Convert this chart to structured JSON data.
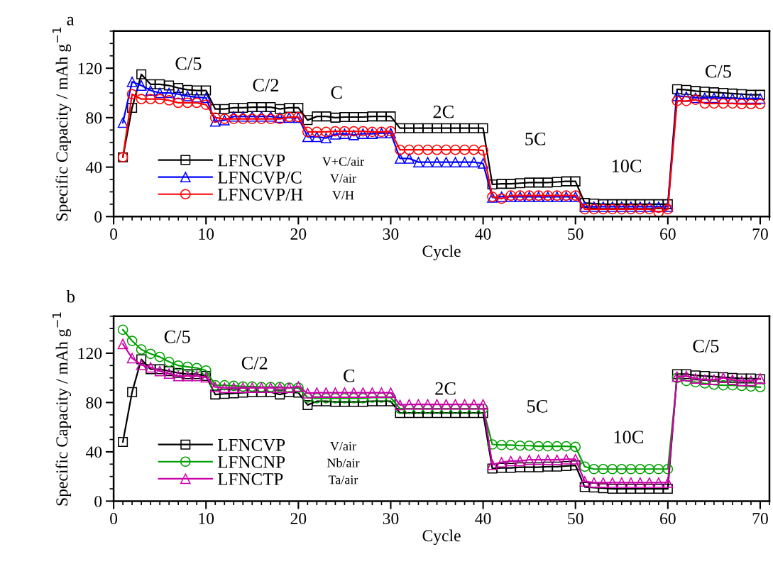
{
  "chart_data": [
    {
      "type": "line",
      "title": "a",
      "xlabel": "Cycle",
      "ylabel": "Specific Capacity / mAh g$^{−1}$",
      "x": [
        1,
        2,
        3,
        4,
        5,
        6,
        7,
        8,
        9,
        10,
        11,
        12,
        13,
        14,
        15,
        16,
        17,
        18,
        19,
        20,
        21,
        22,
        23,
        24,
        25,
        26,
        27,
        28,
        29,
        30,
        31,
        32,
        33,
        34,
        35,
        36,
        37,
        38,
        39,
        40,
        41,
        42,
        43,
        44,
        45,
        46,
        47,
        48,
        49,
        50,
        51,
        52,
        53,
        54,
        55,
        56,
        57,
        58,
        59,
        60,
        61,
        62,
        63,
        64,
        65,
        66,
        67,
        68,
        69,
        70
      ],
      "xlim": [
        0,
        71
      ],
      "xticks": [
        0,
        10,
        20,
        30,
        40,
        50,
        60,
        70
      ],
      "ylim": [
        0,
        150
      ],
      "yticks": [
        0,
        40,
        80,
        120
      ],
      "legend": "lower left",
      "line_style": "solid",
      "grid": false,
      "series": [
        {
          "name": "LFNCVP",
          "color": "#000000",
          "marker": "square",
          "values": [
            48,
            88,
            115,
            107,
            107,
            106,
            104,
            102.5,
            102,
            102,
            87,
            87,
            88,
            88,
            88.5,
            88.5,
            88.5,
            87,
            88,
            88,
            78,
            81,
            81,
            80,
            80.5,
            80.5,
            80.5,
            81,
            81,
            81,
            71.5,
            71.5,
            71.5,
            71.5,
            71.5,
            71.5,
            71.5,
            71.5,
            71.5,
            71.5,
            26,
            26.5,
            26.5,
            27,
            27.5,
            27.5,
            27.5,
            28,
            28.5,
            28.5,
            11,
            10.5,
            10,
            10,
            10,
            10,
            10,
            10,
            10,
            10,
            103,
            102.5,
            101.5,
            101,
            100.5,
            100,
            99.5,
            99,
            98.5,
            98.5
          ]
        },
        {
          "name": "LFNCVP/C",
          "color": "#0000ff",
          "marker": "triangle",
          "values": [
            76,
            109,
            106,
            102,
            100,
            100,
            99,
            97.5,
            96.5,
            96,
            77,
            78,
            81,
            81,
            81,
            81,
            81,
            80,
            80,
            80,
            64.5,
            64.5,
            63.5,
            66.5,
            67,
            66,
            67,
            67,
            67.5,
            67.5,
            47,
            47,
            44,
            44,
            44,
            44,
            44,
            44,
            44,
            43,
            15.5,
            16,
            16,
            16,
            16,
            16,
            16,
            16,
            16,
            16,
            8,
            8,
            8,
            8,
            8,
            8,
            8,
            8,
            8,
            8,
            97.5,
            97,
            96,
            96,
            96,
            95.5,
            95.5,
            95.5,
            95.5,
            95.5
          ]
        },
        {
          "name": "LFNCVP/H",
          "color": "#ff0000",
          "marker": "circle",
          "values": [
            48,
            99,
            95,
            95,
            95,
            94,
            92,
            92,
            92,
            90.5,
            80,
            79,
            79,
            79,
            79,
            79,
            79,
            79,
            80.5,
            80.5,
            68.5,
            68.5,
            68.5,
            69,
            69,
            69,
            69,
            68.5,
            68.5,
            69,
            54,
            54,
            54,
            54,
            54,
            54,
            54,
            54,
            54,
            53.5,
            16,
            14.5,
            17,
            17,
            17,
            17,
            17,
            17,
            17,
            17,
            6,
            6,
            6,
            6,
            6,
            6,
            6,
            6,
            3.5,
            6,
            93.5,
            93.5,
            94.5,
            91.5,
            91.5,
            91.5,
            91.5,
            91,
            91,
            91
          ]
        }
      ],
      "annotations": [
        "C/5",
        "C/2",
        "C",
        "2C",
        "5C",
        "10C",
        "C/5",
        "V+C/air",
        "V/air",
        "V/H"
      ]
    },
    {
      "type": "line",
      "title": "b",
      "xlabel": "Cycle",
      "ylabel": "Specific Capacity / mAh g$^{−1}$",
      "x": [
        1,
        2,
        3,
        4,
        5,
        6,
        7,
        8,
        9,
        10,
        11,
        12,
        13,
        14,
        15,
        16,
        17,
        18,
        19,
        20,
        21,
        22,
        23,
        24,
        25,
        26,
        27,
        28,
        29,
        30,
        31,
        32,
        33,
        34,
        35,
        36,
        37,
        38,
        39,
        40,
        41,
        42,
        43,
        44,
        45,
        46,
        47,
        48,
        49,
        50,
        51,
        52,
        53,
        54,
        55,
        56,
        57,
        58,
        59,
        60,
        61,
        62,
        63,
        64,
        65,
        66,
        67,
        68,
        69,
        70
      ],
      "xlim": [
        0,
        71
      ],
      "xticks": [
        0,
        10,
        20,
        30,
        40,
        50,
        60,
        70
      ],
      "ylim": [
        0,
        150
      ],
      "yticks": [
        0,
        40,
        80,
        120
      ],
      "legend": "lower left",
      "line_style": "solid",
      "grid": false,
      "series": [
        {
          "name": "LFNCVP",
          "color": "#000000",
          "marker": "square",
          "values": [
            48,
            88.5,
            115,
            107,
            107,
            105.5,
            104,
            103,
            103,
            101.5,
            86.5,
            87,
            87.5,
            88,
            88.5,
            88.5,
            88.5,
            86.5,
            88.5,
            88,
            78,
            81,
            81,
            80.5,
            80.5,
            80.5,
            80.5,
            81,
            81,
            81,
            71.5,
            71.5,
            71.5,
            71.5,
            71.5,
            71.5,
            71.5,
            71.5,
            71.5,
            71.5,
            26.5,
            27,
            27,
            27.5,
            27.5,
            27.5,
            28,
            28,
            28.5,
            29,
            11.5,
            11,
            10.5,
            10,
            10,
            10,
            10,
            10,
            10,
            10,
            103,
            103,
            102,
            101.5,
            101,
            100.5,
            100,
            99.5,
            99.5,
            99
          ]
        },
        {
          "name": "LFNCNP",
          "color": "#00a000",
          "marker": "circle",
          "values": [
            139,
            130,
            123,
            119.5,
            117,
            113,
            110,
            109,
            108,
            106,
            94,
            94,
            93.5,
            93,
            93,
            92.5,
            92.5,
            92.5,
            92,
            92,
            84,
            83.5,
            83.5,
            83.5,
            83.5,
            83.5,
            83.5,
            84,
            84,
            84,
            75,
            75,
            75,
            75,
            75,
            75,
            75,
            75,
            75,
            75,
            46,
            45.5,
            45.5,
            45,
            45,
            44.5,
            44.5,
            44.5,
            44.5,
            44,
            28,
            26,
            26,
            26,
            26,
            26,
            26,
            26,
            26,
            26,
            100,
            97.5,
            96.5,
            95.5,
            94.5,
            94,
            94,
            93.5,
            93,
            92.5
          ]
        },
        {
          "name": "LFNCTP",
          "color": "#cc00aa",
          "marker": "triangle",
          "values": [
            127.5,
            116,
            110.5,
            108.5,
            105.5,
            103.5,
            101.5,
            101.5,
            101.5,
            100.5,
            92.5,
            92,
            92,
            92,
            92,
            92,
            92,
            92,
            92,
            93,
            87.5,
            88,
            88,
            88,
            88,
            88,
            88,
            88,
            88,
            88,
            78,
            78.5,
            78.5,
            78.5,
            78.5,
            78.5,
            78.5,
            78.5,
            78.5,
            78.5,
            29.5,
            31.5,
            32.5,
            32.5,
            33.5,
            33.5,
            33.5,
            33.5,
            34,
            34,
            16,
            15,
            15,
            15,
            15,
            15,
            15,
            15,
            15,
            15,
            101,
            101.5,
            99.5,
            98.5,
            98.5,
            100,
            98.5,
            97.5,
            97.5,
            99.5
          ]
        }
      ],
      "annotations": [
        "C/5",
        "C/2",
        "C",
        "2C",
        "5C",
        "10C",
        "C/5",
        "V/air",
        "Nb/air",
        "Ta/air"
      ]
    }
  ]
}
